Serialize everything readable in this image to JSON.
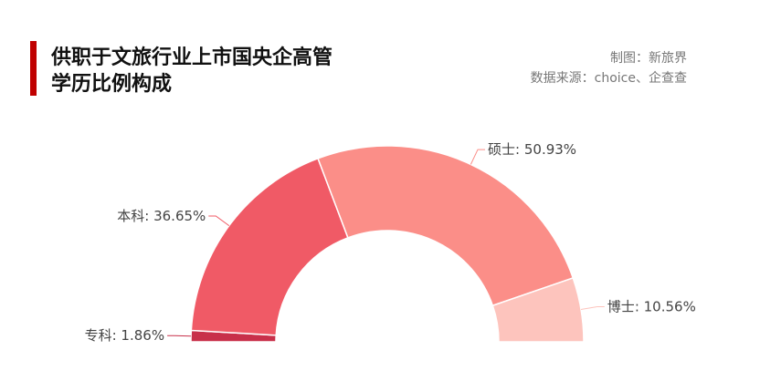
{
  "chart_data": {
    "type": "half-donut",
    "title": [
      "供职于文旅行业上市国央企高管",
      "学历比例构成"
    ],
    "credits": [
      "制图：新旅界",
      "数据来源：choice、企查查"
    ],
    "categories": [
      "专科",
      "本科",
      "硕士",
      "博士"
    ],
    "values": [
      1.86,
      36.65,
      50.93,
      10.56
    ],
    "value_labels": [
      ": 1.86%",
      ": 36.65%",
      ": 50.93%",
      ": 10.56%"
    ],
    "colors": [
      "#c8304a",
      "#f05a66",
      "#fb8e88",
      "#fdc4bd"
    ]
  }
}
